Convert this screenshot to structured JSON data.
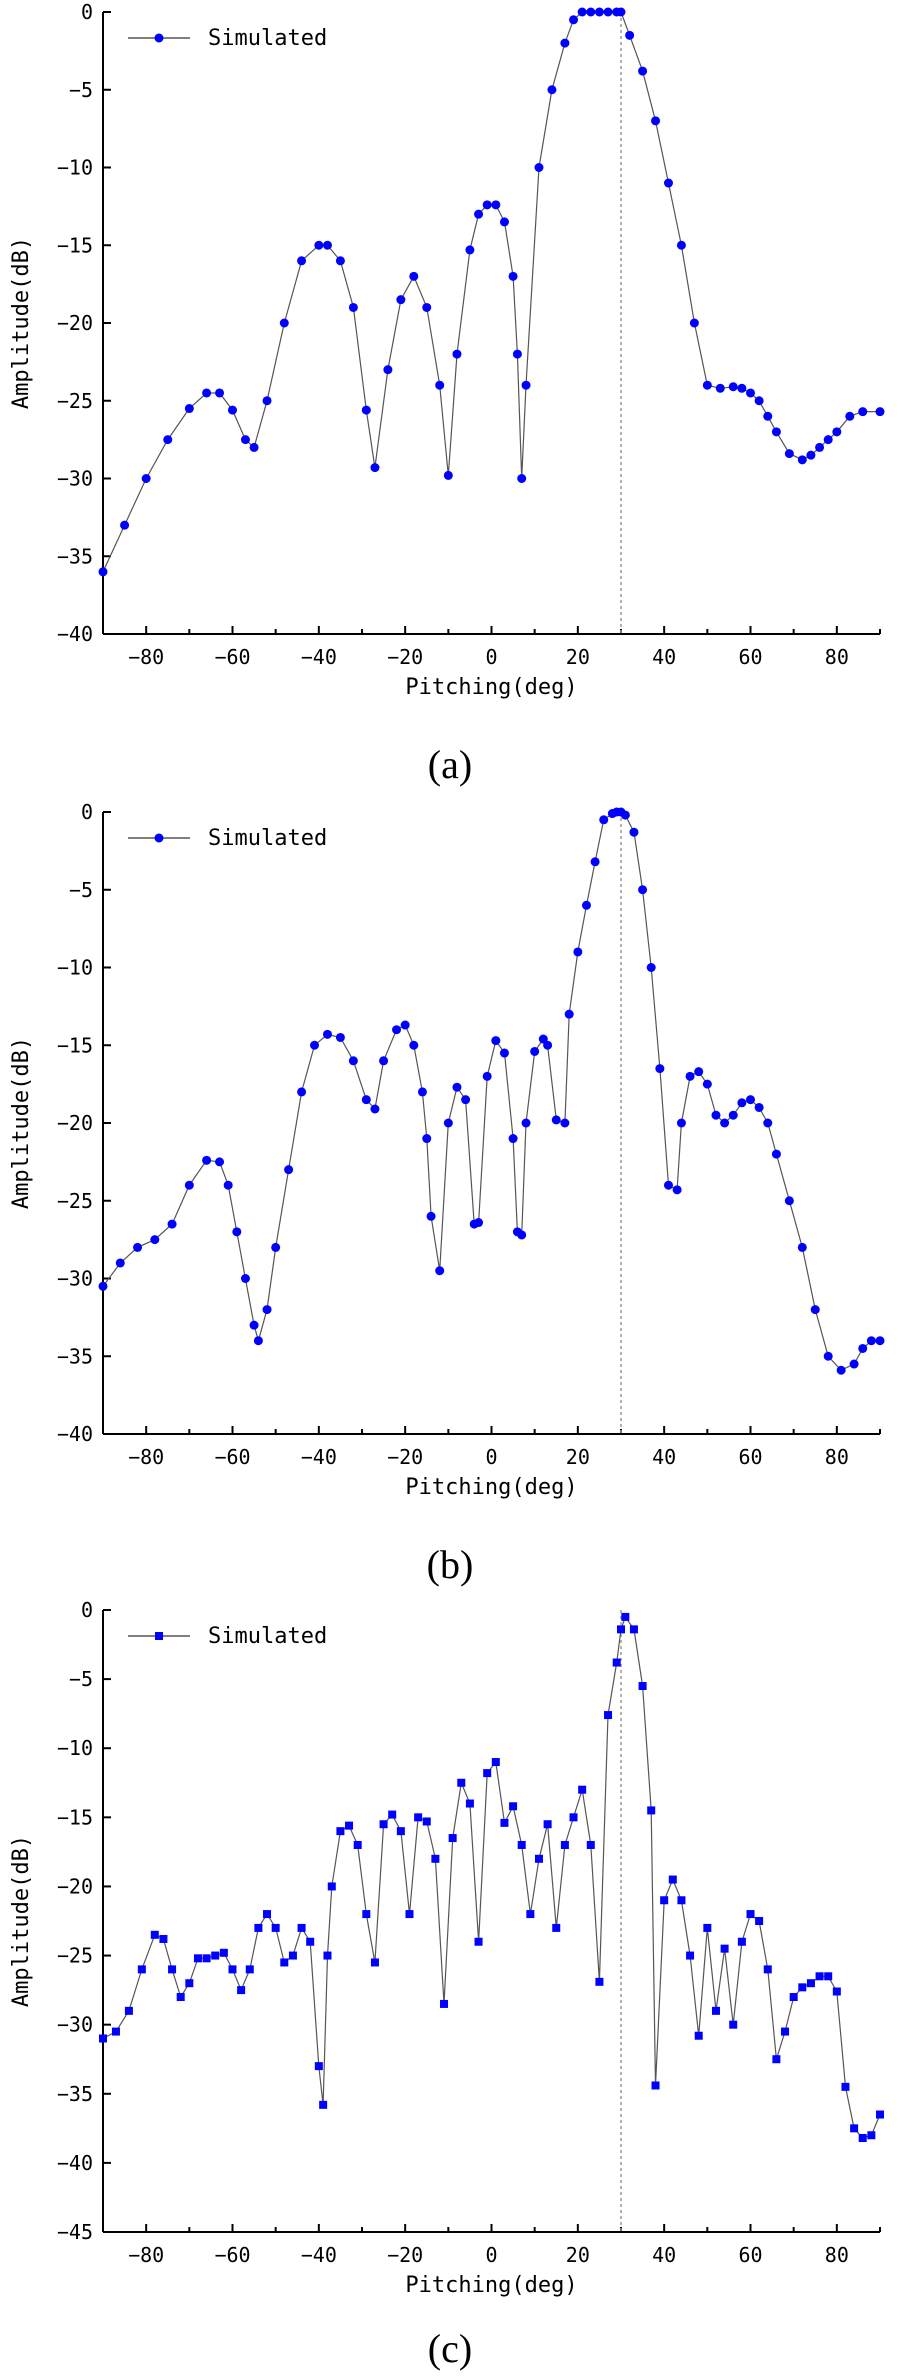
{
  "figure_colors": {
    "series": "#0000ff",
    "line": "#555555",
    "axis": "#000000",
    "marker_line": "#9a9a9a"
  },
  "chart_data": [
    {
      "type": "line",
      "caption": "(a)",
      "xlabel": "Pitching(deg)",
      "ylabel": "Amplitude(dB)",
      "xlim": [
        -90,
        90
      ],
      "ylim": [
        -40,
        0
      ],
      "xticks": [
        -80,
        -60,
        -40,
        -20,
        0,
        20,
        40,
        60,
        80
      ],
      "yticks": [
        0,
        -5,
        -10,
        -15,
        -20,
        -25,
        -30,
        -35,
        -40
      ],
      "grid": false,
      "legend_position": "top-left",
      "marker": "circle",
      "vertical_marker_x": 30,
      "series": [
        {
          "name": "Simulated",
          "x": [
            -90,
            -85,
            -80,
            -75,
            -70,
            -66,
            -63,
            -60,
            -57,
            -55,
            -52,
            -48,
            -44,
            -40,
            -38,
            -35,
            -32,
            -29,
            -27,
            -24,
            -21,
            -18,
            -15,
            -12,
            -10,
            -8,
            -5,
            -3,
            -1,
            1,
            3,
            5,
            6,
            7,
            8,
            11,
            14,
            17,
            19,
            21,
            23,
            25,
            27,
            29,
            30,
            32,
            35,
            38,
            41,
            44,
            47,
            50,
            53,
            56,
            58,
            60,
            62,
            64,
            66,
            69,
            72,
            74,
            76,
            78,
            80,
            83,
            86,
            90
          ],
          "y": [
            -36,
            -33,
            -30,
            -27.5,
            -25.5,
            -24.5,
            -24.5,
            -25.6,
            -27.5,
            -28,
            -25,
            -20,
            -16,
            -15,
            -15,
            -16,
            -19,
            -25.6,
            -29.3,
            -23,
            -18.5,
            -17,
            -19,
            -24,
            -29.8,
            -22,
            -15.3,
            -13,
            -12.4,
            -12.4,
            -13.5,
            -17,
            -22,
            -30,
            -24,
            -10,
            -5,
            -2,
            -0.5,
            0,
            0,
            0,
            0,
            0,
            0,
            -1.5,
            -3.8,
            -7,
            -11,
            -15,
            -20,
            -24,
            -24.2,
            -24.1,
            -24.2,
            -24.5,
            -25,
            -26,
            -27,
            -28.4,
            -28.8,
            -28.5,
            -28,
            -27.5,
            -27,
            -26,
            -25.7,
            -25.7
          ]
        }
      ]
    },
    {
      "type": "line",
      "caption": "(b)",
      "xlabel": "Pitching(deg)",
      "ylabel": "Amplitude(dB)",
      "xlim": [
        -90,
        90
      ],
      "ylim": [
        -40,
        0
      ],
      "xticks": [
        -80,
        -60,
        -40,
        -20,
        0,
        20,
        40,
        60,
        80
      ],
      "yticks": [
        0,
        -5,
        -10,
        -15,
        -20,
        -25,
        -30,
        -35,
        -40
      ],
      "grid": false,
      "legend_position": "top-left",
      "marker": "circle",
      "vertical_marker_x": 30,
      "series": [
        {
          "name": "Simulated",
          "x": [
            -90,
            -86,
            -82,
            -78,
            -74,
            -70,
            -66,
            -63,
            -61,
            -59,
            -57,
            -55,
            -54,
            -52,
            -50,
            -47,
            -44,
            -41,
            -38,
            -35,
            -32,
            -29,
            -27,
            -25,
            -22,
            -20,
            -18,
            -16,
            -15,
            -14,
            -12,
            -10,
            -8,
            -6,
            -4,
            -3,
            -1,
            1,
            3,
            5,
            6,
            7,
            8,
            10,
            12,
            13,
            15,
            17,
            18,
            20,
            22,
            24,
            26,
            28,
            29,
            30,
            31,
            33,
            35,
            37,
            39,
            41,
            43,
            44,
            46,
            48,
            50,
            52,
            54,
            56,
            58,
            60,
            62,
            64,
            66,
            69,
            72,
            75,
            78,
            81,
            84,
            86,
            88,
            90
          ],
          "y": [
            -30.5,
            -29,
            -28,
            -27.5,
            -26.5,
            -24,
            -22.4,
            -22.5,
            -24,
            -27,
            -30,
            -33,
            -34,
            -32,
            -28,
            -23,
            -18,
            -15,
            -14.3,
            -14.5,
            -16,
            -18.5,
            -19.1,
            -16,
            -14,
            -13.7,
            -15,
            -18,
            -21,
            -26,
            -29.5,
            -20,
            -17.7,
            -18.5,
            -26.5,
            -26.4,
            -17,
            -14.7,
            -15.5,
            -21,
            -27,
            -27.2,
            -20,
            -15.4,
            -14.6,
            -15,
            -19.8,
            -20,
            -13,
            -9,
            -6,
            -3.2,
            -0.5,
            -0.1,
            0,
            0,
            -0.2,
            -1.3,
            -5,
            -10,
            -16.5,
            -24,
            -24.3,
            -20,
            -17,
            -16.7,
            -17.5,
            -19.5,
            -20,
            -19.5,
            -18.7,
            -18.5,
            -19,
            -20,
            -22,
            -25,
            -28,
            -32,
            -35,
            -35.9,
            -35.5,
            -34.5,
            -34,
            -34
          ]
        }
      ]
    },
    {
      "type": "line",
      "caption": "(c)",
      "xlabel": "Pitching(deg)",
      "ylabel": "Amplitude(dB)",
      "xlim": [
        -90,
        90
      ],
      "ylim": [
        -45,
        0
      ],
      "xticks": [
        -80,
        -60,
        -40,
        -20,
        0,
        20,
        40,
        60,
        80
      ],
      "yticks": [
        0,
        -5,
        -10,
        -15,
        -20,
        -25,
        -30,
        -35,
        -40,
        -45
      ],
      "grid": false,
      "legend_position": "top-left",
      "marker": "square",
      "vertical_marker_x": 30,
      "series": [
        {
          "name": "Simulated",
          "x": [
            -90,
            -87,
            -84,
            -81,
            -78,
            -76,
            -74,
            -72,
            -70,
            -68,
            -66,
            -64,
            -62,
            -60,
            -58,
            -56,
            -54,
            -52,
            -50,
            -48,
            -46,
            -44,
            -42,
            -40,
            -39,
            -38,
            -37,
            -35,
            -33,
            -31,
            -29,
            -27,
            -25,
            -23,
            -21,
            -19,
            -17,
            -15,
            -13,
            -11,
            -9,
            -7,
            -5,
            -3,
            -1,
            1,
            3,
            5,
            7,
            9,
            11,
            13,
            15,
            17,
            19,
            21,
            23,
            25,
            27,
            29,
            30,
            31,
            33,
            35,
            37,
            38,
            40,
            42,
            44,
            46,
            48,
            50,
            52,
            54,
            56,
            58,
            60,
            62,
            64,
            66,
            68,
            70,
            72,
            74,
            76,
            78,
            80,
            82,
            84,
            86,
            88,
            90
          ],
          "y": [
            -31,
            -30.5,
            -29,
            -26,
            -23.5,
            -23.8,
            -26,
            -28,
            -27,
            -25.2,
            -25.2,
            -25,
            -24.8,
            -26,
            -27.5,
            -26,
            -23,
            -22,
            -23,
            -25.5,
            -25,
            -23,
            -24,
            -33,
            -35.8,
            -25,
            -20,
            -16,
            -15.6,
            -17,
            -22,
            -25.5,
            -15.5,
            -14.8,
            -16,
            -22,
            -15,
            -15.3,
            -18,
            -28.5,
            -16.5,
            -12.5,
            -14,
            -24,
            -11.8,
            -11,
            -15.4,
            -14.2,
            -17,
            -22,
            -18,
            -15.5,
            -23,
            -17,
            -15,
            -13,
            -17,
            -26.9,
            -7.6,
            -3.8,
            -1.4,
            -0.5,
            -1.4,
            -5.5,
            -14.5,
            -34.4,
            -21,
            -19.5,
            -21,
            -25,
            -30.8,
            -23,
            -29,
            -24.5,
            -30,
            -24,
            -22,
            -22.5,
            -26,
            -32.5,
            -30.5,
            -28,
            -27.3,
            -27,
            -26.5,
            -26.5,
            -27.6,
            -34.5,
            -37.5,
            -38.2,
            -38,
            -36.5
          ]
        }
      ]
    }
  ]
}
